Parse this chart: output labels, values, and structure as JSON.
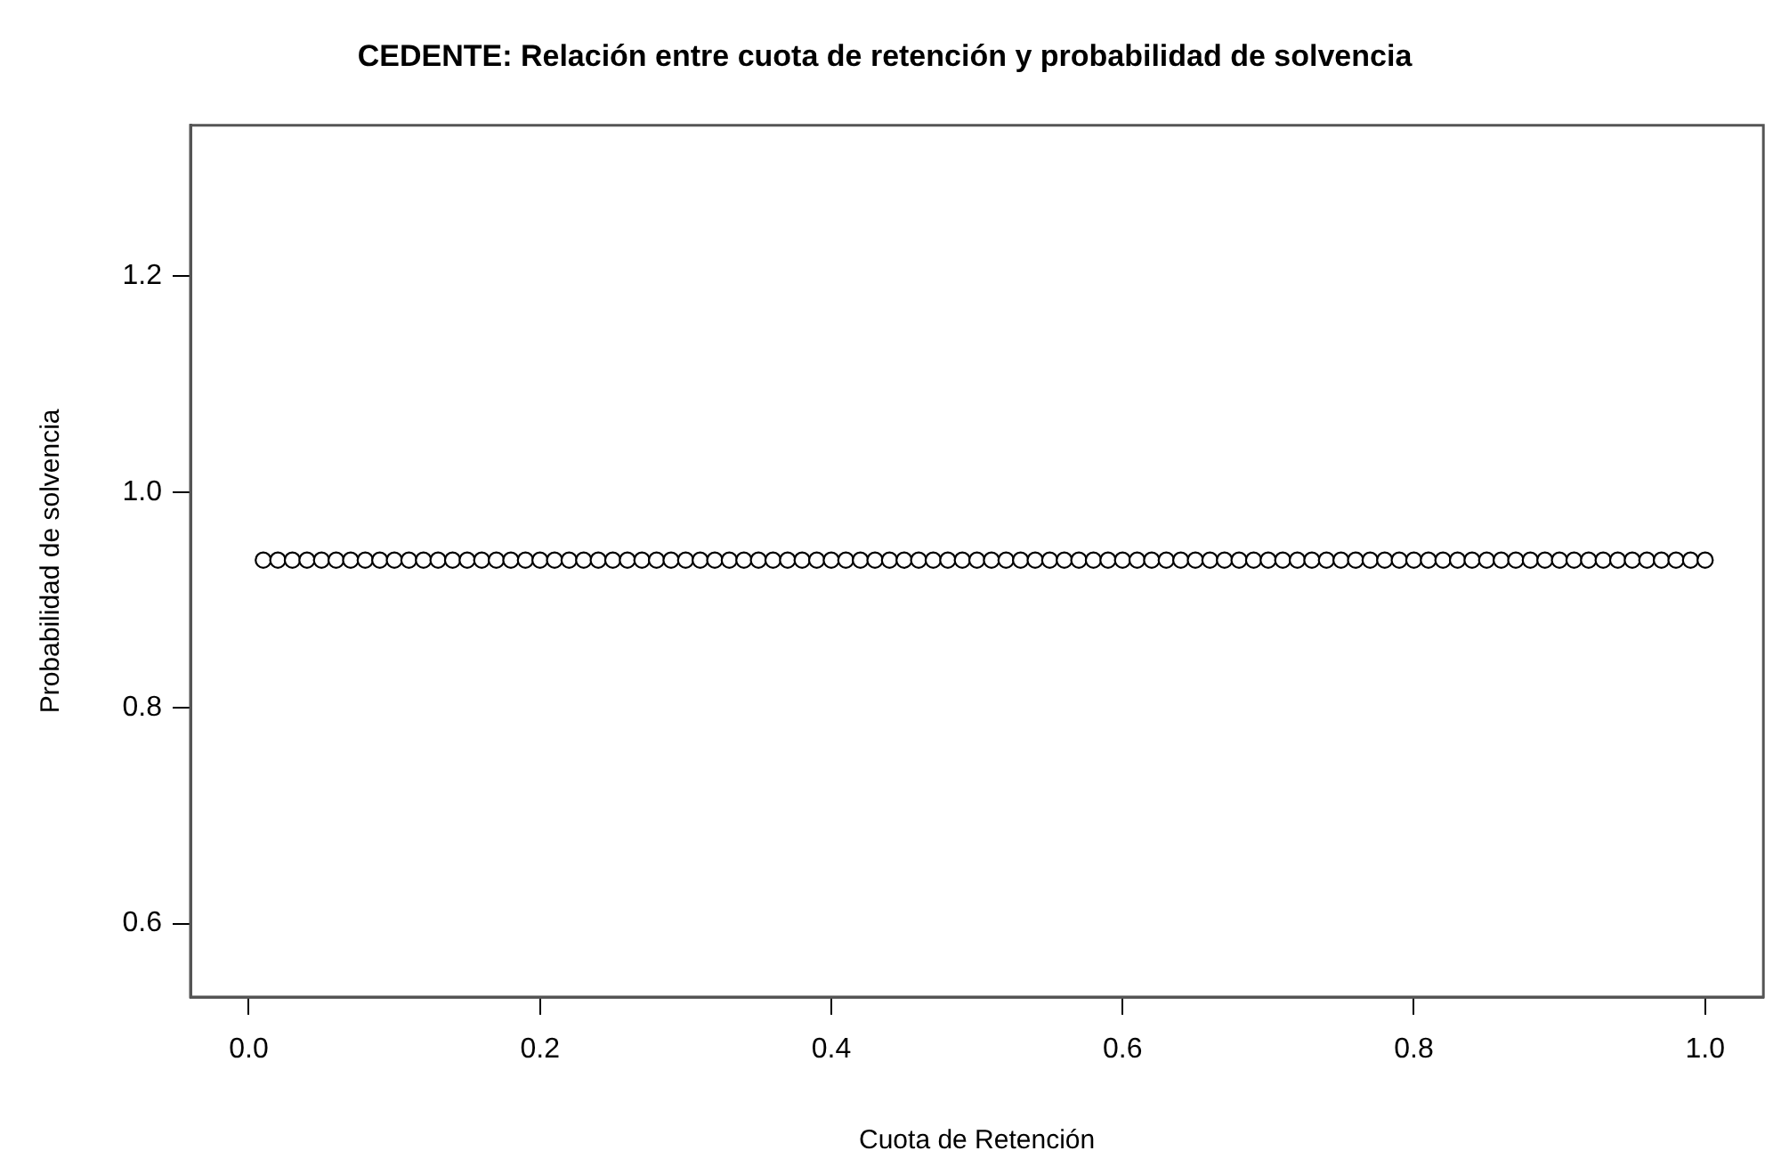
{
  "chart_data": {
    "type": "scatter",
    "title": "CEDENTE: Relación entre cuota de retención y probabilidad de solvencia",
    "xlabel": "Cuota de Retención",
    "ylabel": "Probabilidad de solvencia",
    "x": [
      0.01,
      0.02,
      0.03,
      0.04,
      0.05,
      0.06,
      0.07,
      0.08,
      0.09,
      0.1,
      0.11,
      0.12,
      0.13,
      0.14,
      0.15,
      0.16,
      0.17,
      0.18,
      0.19,
      0.2,
      0.21,
      0.22,
      0.23,
      0.24,
      0.25,
      0.26,
      0.27,
      0.28,
      0.29,
      0.3,
      0.31,
      0.32,
      0.33,
      0.34,
      0.35,
      0.36,
      0.37,
      0.38,
      0.39,
      0.4,
      0.41,
      0.42,
      0.43,
      0.44,
      0.45,
      0.46,
      0.47,
      0.48,
      0.49,
      0.5,
      0.51,
      0.52,
      0.53,
      0.54,
      0.55,
      0.56,
      0.57,
      0.58,
      0.59,
      0.6,
      0.61,
      0.62,
      0.63,
      0.64,
      0.65,
      0.66,
      0.67,
      0.68,
      0.69,
      0.7,
      0.71,
      0.72,
      0.73,
      0.74,
      0.75,
      0.76,
      0.77,
      0.78,
      0.79,
      0.8,
      0.81,
      0.82,
      0.83,
      0.84,
      0.85,
      0.86,
      0.87,
      0.88,
      0.89,
      0.9,
      0.91,
      0.92,
      0.93,
      0.94,
      0.95,
      0.96,
      0.97,
      0.98,
      0.99,
      1.0
    ],
    "series": [
      {
        "color": "#000000",
        "values": [
          0.937,
          0.937,
          0.937,
          0.937,
          0.937,
          0.937,
          0.937,
          0.937,
          0.937,
          0.937,
          0.937,
          0.937,
          0.937,
          0.937,
          0.937,
          0.937,
          0.937,
          0.937,
          0.937,
          0.937,
          0.937,
          0.937,
          0.937,
          0.937,
          0.937,
          0.937,
          0.937,
          0.937,
          0.937,
          0.937,
          0.937,
          0.937,
          0.937,
          0.937,
          0.937,
          0.937,
          0.937,
          0.937,
          0.937,
          0.937,
          0.937,
          0.937,
          0.937,
          0.937,
          0.937,
          0.937,
          0.937,
          0.937,
          0.937,
          0.937,
          0.937,
          0.937,
          0.937,
          0.937,
          0.937,
          0.937,
          0.937,
          0.937,
          0.937,
          0.937,
          0.937,
          0.937,
          0.937,
          0.937,
          0.937,
          0.937,
          0.937,
          0.937,
          0.937,
          0.937,
          0.937,
          0.937,
          0.937,
          0.937,
          0.937,
          0.937,
          0.937,
          0.937,
          0.937,
          0.937,
          0.937,
          0.937,
          0.937,
          0.937,
          0.937,
          0.937,
          0.937,
          0.937,
          0.937,
          0.937,
          0.937,
          0.937,
          0.937,
          0.937,
          0.937,
          0.937,
          0.937,
          0.937,
          0.937,
          0.937
        ]
      }
    ],
    "xlim": [
      -0.04,
      1.04
    ],
    "xticks": [
      {
        "value": 0,
        "label": "0.0"
      },
      0.2,
      0.4,
      0.6,
      0.8,
      {
        "value": 1,
        "label": "1.0"
      }
    ],
    "ylim": [
      0.532,
      1.34
    ],
    "yticks": [
      0.6,
      0.8,
      {
        "value": 1,
        "label": "1.0"
      },
      1.2
    ],
    "marker": "circle",
    "grid": false,
    "legend": false
  }
}
